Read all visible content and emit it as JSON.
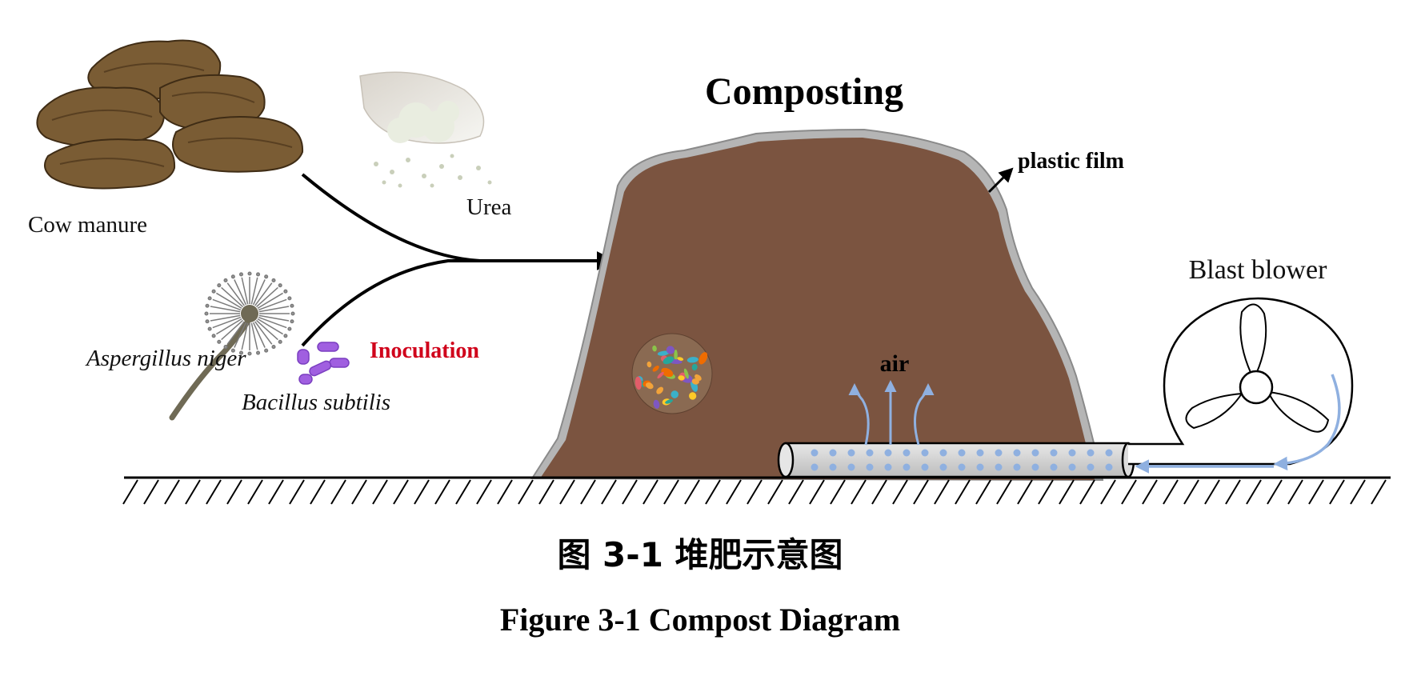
{
  "diagram": {
    "title": "Composting",
    "labels": {
      "cow_manure": "Cow manure",
      "urea": "Urea",
      "aspergillus": "Aspergillus niger",
      "bacillus": "Bacillus subtilis",
      "inoculation": "Inoculation",
      "plastic_film": "plastic film",
      "air": "air",
      "blast_blower": "Blast blower"
    },
    "caption_cn": "图 3-1  堆肥示意图",
    "caption_en": "Figure 3-1 Compost Diagram"
  },
  "colors": {
    "compost": "#7b5440",
    "film": "#b5b5b5",
    "manure": "#7a5c34",
    "air_arrows": "#8fb0e0",
    "inoculation": "#d0021b",
    "bacteria": "#a05fe0"
  }
}
